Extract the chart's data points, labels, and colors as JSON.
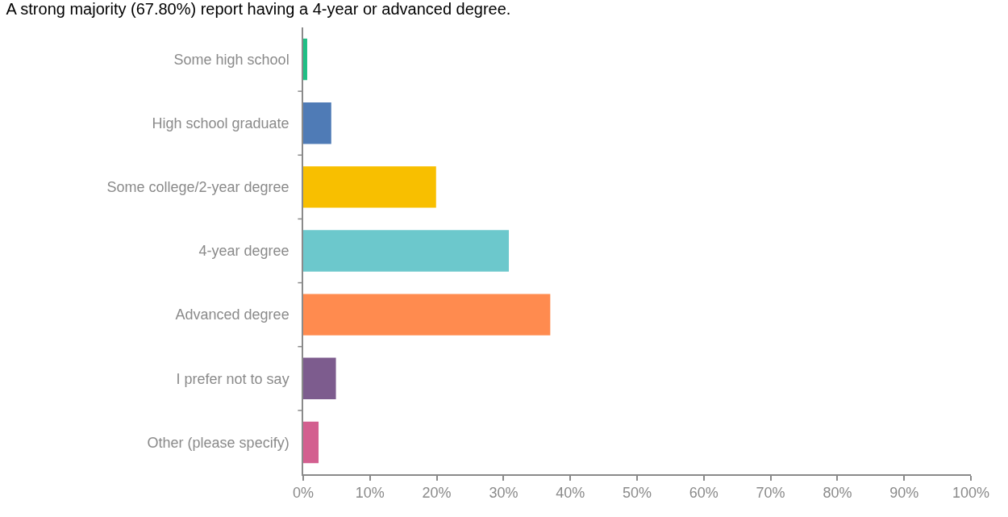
{
  "chart_data": {
    "type": "bar",
    "orientation": "horizontal",
    "title": "A strong majority (67.80%) report having a 4-year or advanced degree.",
    "categories": [
      "Some high school",
      "High school graduate",
      "Some college/2-year degree",
      "4-year degree",
      "Advanced degree",
      "I prefer not to say",
      "Other (please specify)"
    ],
    "values": [
      0.6,
      4.2,
      19.9,
      30.8,
      37.0,
      4.9,
      2.3
    ],
    "colors": [
      "#1fbf85",
      "#4f7bb6",
      "#f8bf00",
      "#6cc8cc",
      "#ff8b4f",
      "#7d5c8e",
      "#d35f8f"
    ],
    "xlim": [
      0,
      100
    ],
    "xticks": [
      {
        "value": 0,
        "label": "0%"
      },
      {
        "value": 10,
        "label": "10%"
      },
      {
        "value": 20,
        "label": "20%"
      },
      {
        "value": 30,
        "label": "30%"
      },
      {
        "value": 40,
        "label": "40%"
      },
      {
        "value": 50,
        "label": "50%"
      },
      {
        "value": 60,
        "label": "60%"
      },
      {
        "value": 70,
        "label": "70%"
      },
      {
        "value": 80,
        "label": "80%"
      },
      {
        "value": 90,
        "label": "90%"
      },
      {
        "value": 100,
        "label": "100%"
      }
    ]
  }
}
